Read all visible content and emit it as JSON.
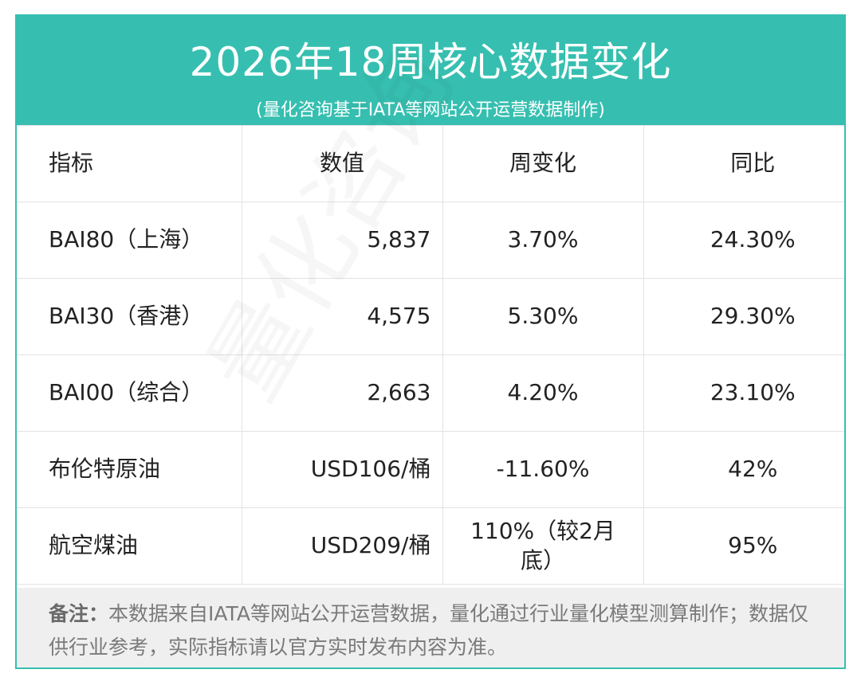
{
  "header": {
    "title": "2026年18周核心数据变化",
    "subtitle": "(量化咨询基于IATA等网站公开运营数据制作)"
  },
  "table": {
    "headers": [
      "指标",
      "数值",
      "周变化",
      "同比"
    ],
    "rows": [
      [
        "BAI80（上海）",
        "5,837",
        "3.70%",
        "24.30%"
      ],
      [
        "BAI30（香港）",
        "4,575",
        "5.30%",
        "29.30%"
      ],
      [
        "BAI00（综合）",
        "2,663",
        "4.20%",
        "23.10%"
      ],
      [
        "布伦特原油",
        "USD106/桶",
        "-11.60%",
        "42%"
      ],
      [
        "航空煤油",
        "USD209/桶",
        "110%（较2月底）",
        "95%"
      ]
    ]
  },
  "note": {
    "label": "备注：",
    "text": "本数据来自IATA等网站公开运营数据，量化通过行业量化模型测算制作；数据仅供行业参考，实际指标请以官方实时发布内容为准。"
  },
  "watermark": "量化咨询"
}
